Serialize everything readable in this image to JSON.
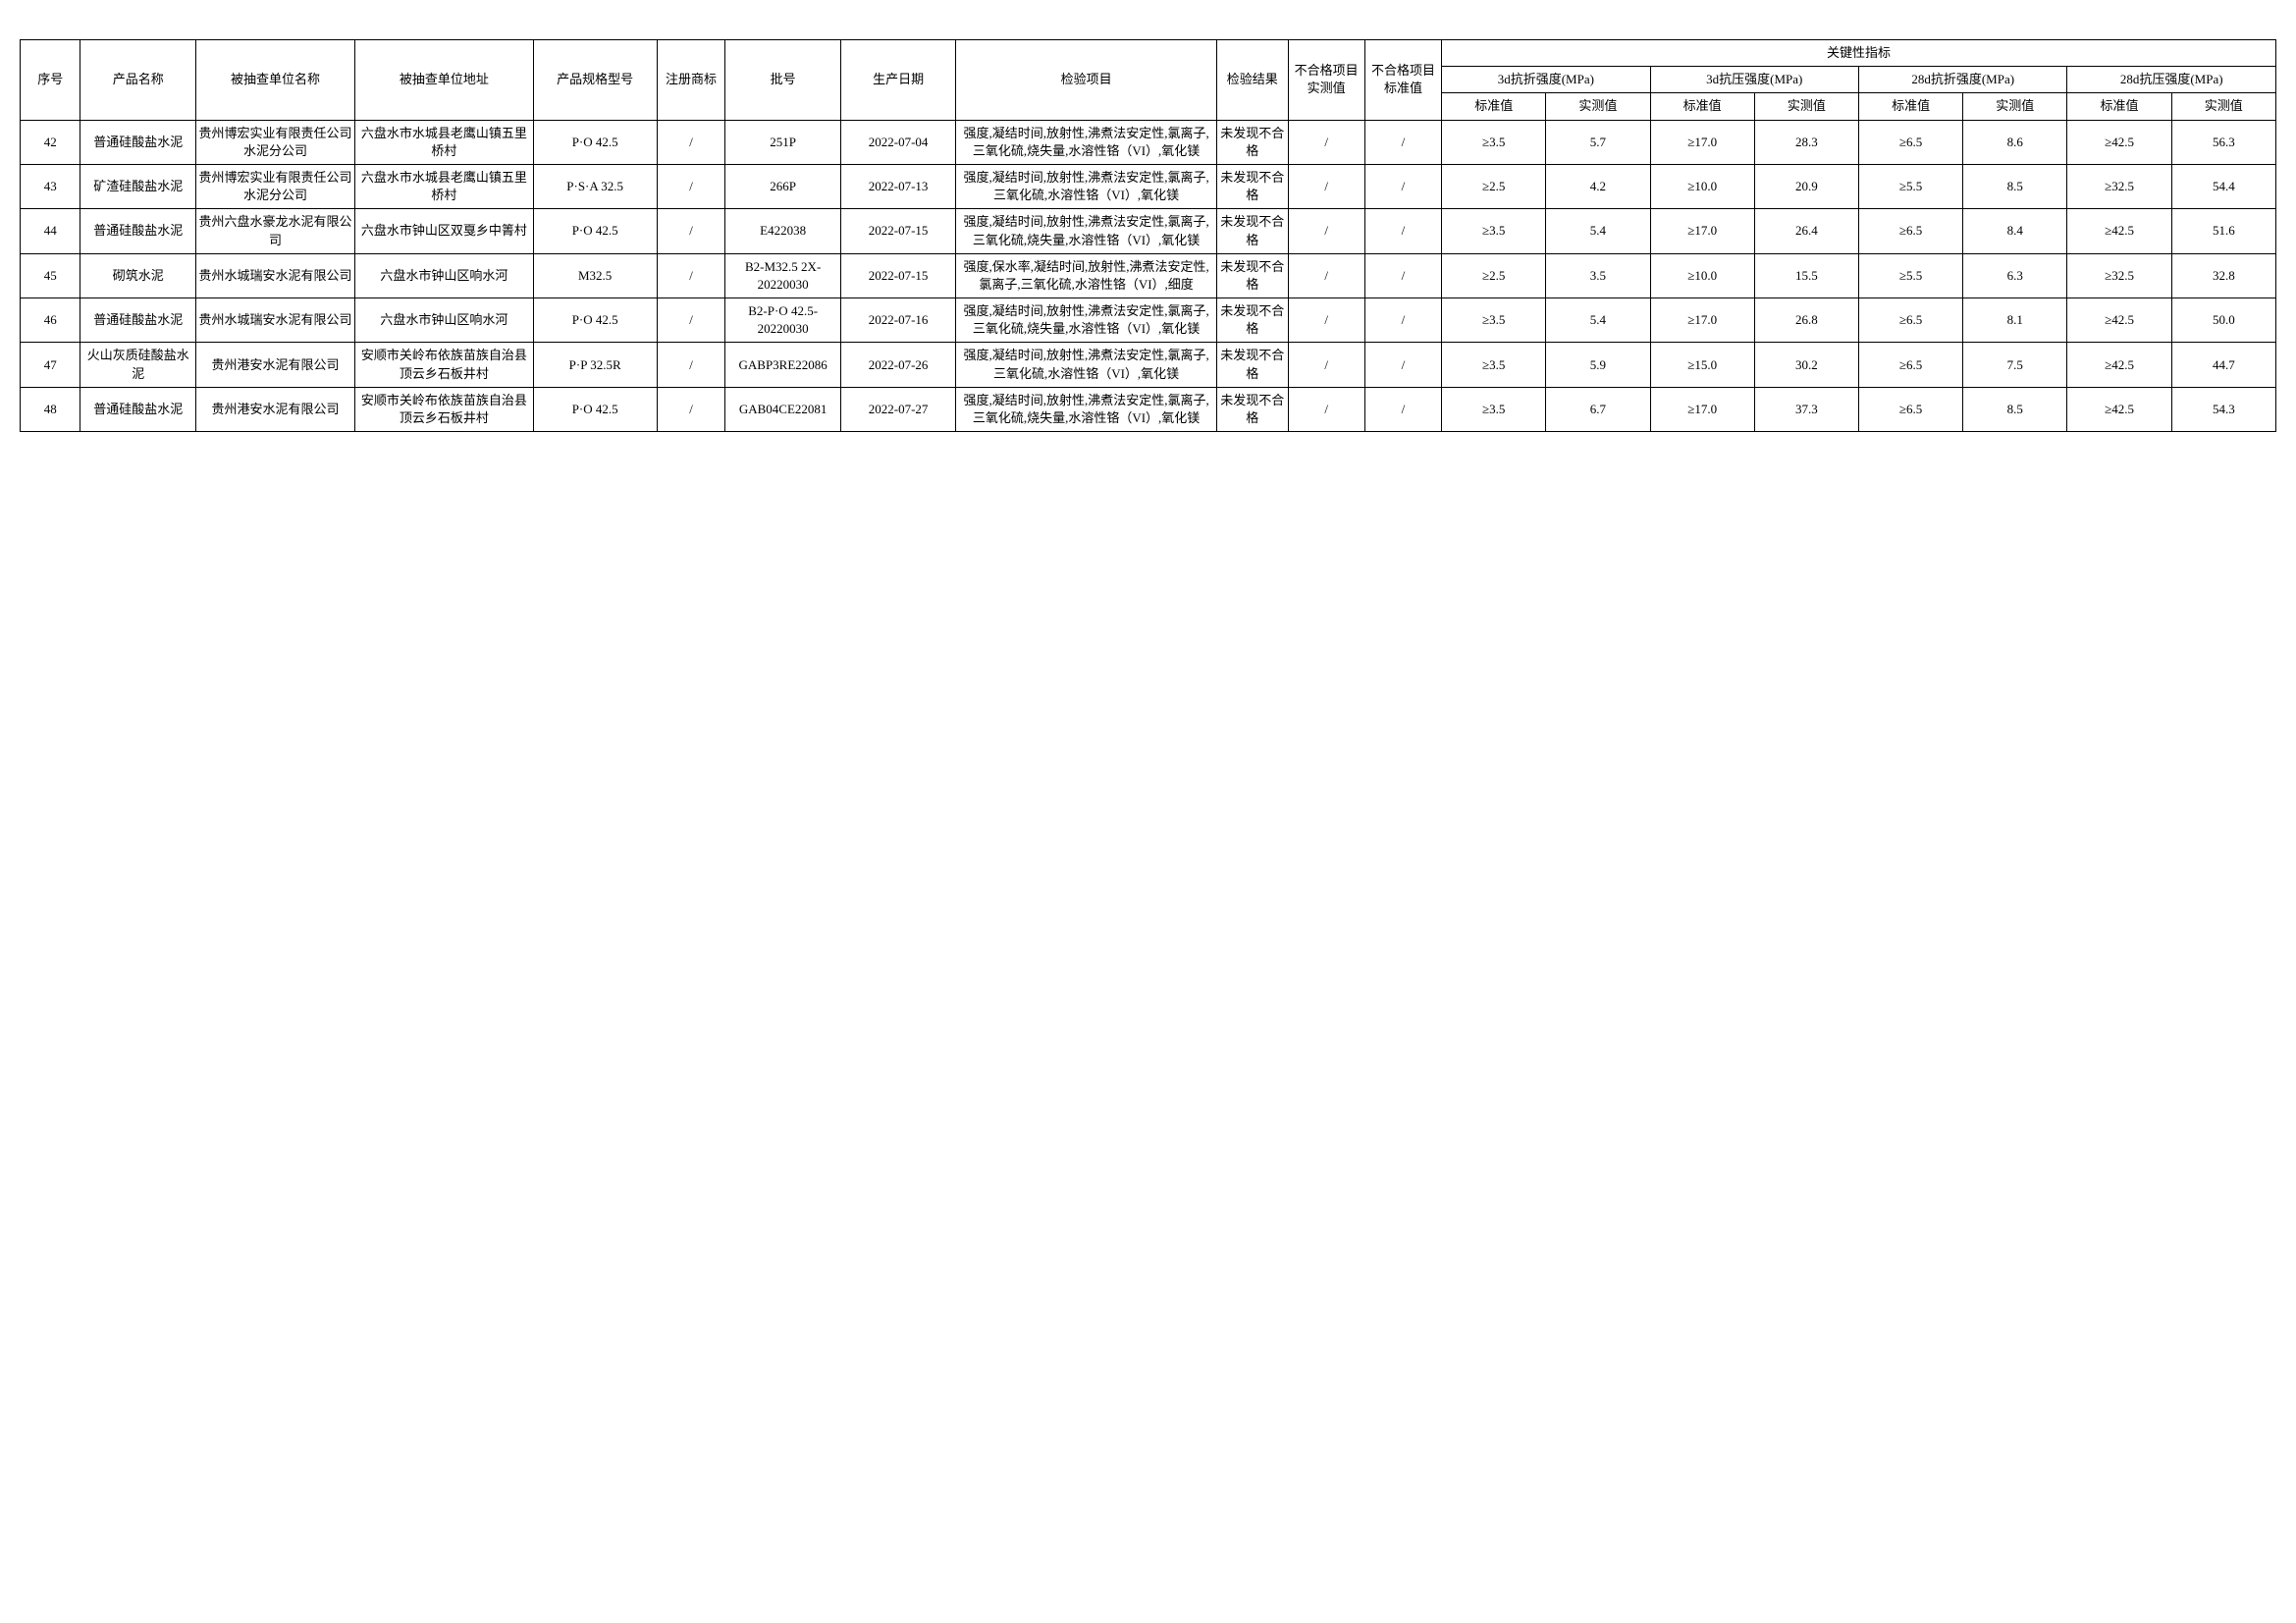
{
  "headers": {
    "seq": "序号",
    "product_name": "产品名称",
    "company": "被抽查单位名称",
    "address": "被抽查单位地址",
    "spec": "产品规格型号",
    "trademark": "注册商标",
    "batch": "批号",
    "prod_date": "生产日期",
    "inspection_items": "检验项目",
    "result": "检验结果",
    "noncon_actual": "不合格项目实测值",
    "noncon_std": "不合格项目标准值",
    "key_metrics": "关键性指标",
    "m3d_flex": "3d抗折强度(MPa)",
    "m3d_comp": "3d抗压强度(MPa)",
    "m28d_flex": "28d抗折强度(MPa)",
    "m28d_comp": "28d抗压强度(MPa)",
    "std_val": "标准值",
    "meas_val": "实测值"
  },
  "rows": [
    {
      "seq": "42",
      "product_name": "普通硅酸盐水泥",
      "company": "贵州博宏实业有限责任公司水泥分公司",
      "address": "六盘水市水城县老鹰山镇五里桥村",
      "spec": "P·O 42.5",
      "trademark": "/",
      "batch": "251P",
      "prod_date": "2022-07-04",
      "inspection_items": "强度,凝结时间,放射性,沸煮法安定性,氯离子,三氧化硫,烧失量,水溶性铬（VI）,氧化镁",
      "result": "未发现不合格",
      "noncon_actual": "/",
      "noncon_std": "/",
      "m3d_flex_std": "≥3.5",
      "m3d_flex_meas": "5.7",
      "m3d_comp_std": "≥17.0",
      "m3d_comp_meas": "28.3",
      "m28d_flex_std": "≥6.5",
      "m28d_flex_meas": "8.6",
      "m28d_comp_std": "≥42.5",
      "m28d_comp_meas": "56.3"
    },
    {
      "seq": "43",
      "product_name": "矿渣硅酸盐水泥",
      "company": "贵州博宏实业有限责任公司水泥分公司",
      "address": "六盘水市水城县老鹰山镇五里桥村",
      "spec": "P·S·A 32.5",
      "trademark": "/",
      "batch": "266P",
      "prod_date": "2022-07-13",
      "inspection_items": "强度,凝结时间,放射性,沸煮法安定性,氯离子,三氧化硫,水溶性铬（VI）,氧化镁",
      "result": "未发现不合格",
      "noncon_actual": "/",
      "noncon_std": "/",
      "m3d_flex_std": "≥2.5",
      "m3d_flex_meas": "4.2",
      "m3d_comp_std": "≥10.0",
      "m3d_comp_meas": "20.9",
      "m28d_flex_std": "≥5.5",
      "m28d_flex_meas": "8.5",
      "m28d_comp_std": "≥32.5",
      "m28d_comp_meas": "54.4"
    },
    {
      "seq": "44",
      "product_name": "普通硅酸盐水泥",
      "company": "贵州六盘水豪龙水泥有限公司",
      "address": "六盘水市钟山区双戛乡中箐村",
      "spec": "P·O 42.5",
      "trademark": "/",
      "batch": "E422038",
      "prod_date": "2022-07-15",
      "inspection_items": "强度,凝结时间,放射性,沸煮法安定性,氯离子,三氧化硫,烧失量,水溶性铬（VI）,氧化镁",
      "result": "未发现不合格",
      "noncon_actual": "/",
      "noncon_std": "/",
      "m3d_flex_std": "≥3.5",
      "m3d_flex_meas": "5.4",
      "m3d_comp_std": "≥17.0",
      "m3d_comp_meas": "26.4",
      "m28d_flex_std": "≥6.5",
      "m28d_flex_meas": "8.4",
      "m28d_comp_std": "≥42.5",
      "m28d_comp_meas": "51.6"
    },
    {
      "seq": "45",
      "product_name": "砌筑水泥",
      "company": "贵州水城瑞安水泥有限公司",
      "address": "六盘水市钟山区响水河",
      "spec": "M32.5",
      "trademark": "/",
      "batch": "B2-M32.5 2X-20220030",
      "prod_date": "2022-07-15",
      "inspection_items": "强度,保水率,凝结时间,放射性,沸煮法安定性,氯离子,三氧化硫,水溶性铬（VI）,细度",
      "result": "未发现不合格",
      "noncon_actual": "/",
      "noncon_std": "/",
      "m3d_flex_std": "≥2.5",
      "m3d_flex_meas": "3.5",
      "m3d_comp_std": "≥10.0",
      "m3d_comp_meas": "15.5",
      "m28d_flex_std": "≥5.5",
      "m28d_flex_meas": "6.3",
      "m28d_comp_std": "≥32.5",
      "m28d_comp_meas": "32.8"
    },
    {
      "seq": "46",
      "product_name": "普通硅酸盐水泥",
      "company": "贵州水城瑞安水泥有限公司",
      "address": "六盘水市钟山区响水河",
      "spec": "P·O 42.5",
      "trademark": "/",
      "batch": "B2-P·O 42.5-20220030",
      "prod_date": "2022-07-16",
      "inspection_items": "强度,凝结时间,放射性,沸煮法安定性,氯离子,三氧化硫,烧失量,水溶性铬（VI）,氧化镁",
      "result": "未发现不合格",
      "noncon_actual": "/",
      "noncon_std": "/",
      "m3d_flex_std": "≥3.5",
      "m3d_flex_meas": "5.4",
      "m3d_comp_std": "≥17.0",
      "m3d_comp_meas": "26.8",
      "m28d_flex_std": "≥6.5",
      "m28d_flex_meas": "8.1",
      "m28d_comp_std": "≥42.5",
      "m28d_comp_meas": "50.0"
    },
    {
      "seq": "47",
      "product_name": "火山灰质硅酸盐水泥",
      "company": "贵州港安水泥有限公司",
      "address": "安顺市关岭布依族苗族自治县顶云乡石板井村",
      "spec": "P·P 32.5R",
      "trademark": "/",
      "batch": "GABP3RE22086",
      "prod_date": "2022-07-26",
      "inspection_items": "强度,凝结时间,放射性,沸煮法安定性,氯离子,三氧化硫,水溶性铬（VI）,氧化镁",
      "result": "未发现不合格",
      "noncon_actual": "/",
      "noncon_std": "/",
      "m3d_flex_std": "≥3.5",
      "m3d_flex_meas": "5.9",
      "m3d_comp_std": "≥15.0",
      "m3d_comp_meas": "30.2",
      "m28d_flex_std": "≥6.5",
      "m28d_flex_meas": "7.5",
      "m28d_comp_std": "≥42.5",
      "m28d_comp_meas": "44.7"
    },
    {
      "seq": "48",
      "product_name": "普通硅酸盐水泥",
      "company": "贵州港安水泥有限公司",
      "address": "安顺市关岭布依族苗族自治县顶云乡石板井村",
      "spec": "P·O 42.5",
      "trademark": "/",
      "batch": "GAB04CE22081",
      "prod_date": "2022-07-27",
      "inspection_items": "强度,凝结时间,放射性,沸煮法安定性,氯离子,三氧化硫,烧失量,水溶性铬（VI）,氧化镁",
      "result": "未发现不合格",
      "noncon_actual": "/",
      "noncon_std": "/",
      "m3d_flex_std": "≥3.5",
      "m3d_flex_meas": "6.7",
      "m3d_comp_std": "≥17.0",
      "m3d_comp_meas": "37.3",
      "m28d_flex_std": "≥6.5",
      "m28d_flex_meas": "8.5",
      "m28d_comp_std": "≥42.5",
      "m28d_comp_meas": "54.3"
    }
  ]
}
